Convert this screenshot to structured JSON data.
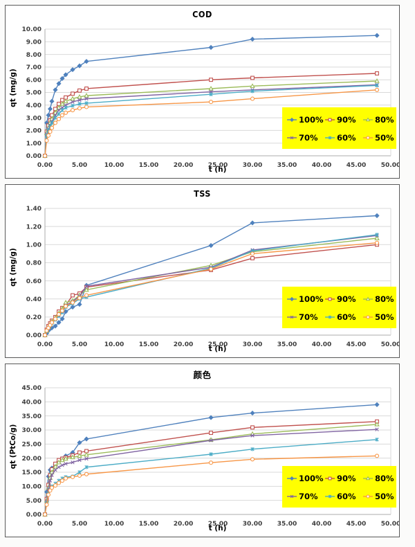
{
  "colors": {
    "legend_bg": "#ffff00",
    "grid": "#d9d9d9",
    "axis": "#ababab",
    "tick_label": "#3d3d3d",
    "panel_border": "#595959",
    "series": {
      "100%": "#4F81BD",
      "90%": "#C0504D",
      "80%": "#9BBB59",
      "70%": "#8064A2",
      "60%": "#4BACC6",
      "50%": "#F79646"
    }
  },
  "chart_data": [
    {
      "type": "line",
      "title": "COD",
      "xlabel": "t (h)",
      "ylabel": "qt (mg/g)",
      "xlim": [
        0,
        50
      ],
      "ylim": [
        0,
        10
      ],
      "grid": "horizontal",
      "legend_position": "lower-right",
      "legend_labels": [
        "100%",
        "90%",
        "80%",
        "70%",
        "60%",
        "50%"
      ],
      "x_ticks": [
        "0.00",
        "5.00",
        "10.00",
        "15.00",
        "20.00",
        "25.00",
        "30.00",
        "35.00",
        "40.00",
        "45.00",
        "50.00"
      ],
      "y_ticks": [
        "0.00",
        "1.00",
        "2.00",
        "3.00",
        "4.00",
        "5.00",
        "6.00",
        "7.00",
        "8.00",
        "9.00",
        "10.00"
      ],
      "x": [
        0,
        0.25,
        0.5,
        0.75,
        1,
        1.5,
        2,
        2.5,
        3,
        4,
        5,
        6,
        24,
        30,
        48
      ],
      "series": [
        {
          "name": "100%",
          "color": "#4F81BD",
          "marker": "diamond",
          "values": [
            0,
            2.6,
            3.2,
            3.7,
            4.3,
            5.2,
            5.7,
            6.1,
            6.4,
            6.8,
            7.1,
            7.45,
            8.55,
            9.2,
            9.5
          ]
        },
        {
          "name": "90%",
          "color": "#C0504D",
          "marker": "square",
          "values": [
            0,
            1.9,
            2.4,
            2.8,
            3.2,
            3.7,
            4.1,
            4.4,
            4.6,
            4.9,
            5.15,
            5.3,
            6.0,
            6.15,
            6.5
          ]
        },
        {
          "name": "80%",
          "color": "#9BBB59",
          "marker": "triangle",
          "values": [
            0,
            1.8,
            2.2,
            2.6,
            2.9,
            3.4,
            3.8,
            4.1,
            4.3,
            4.5,
            4.65,
            4.75,
            5.3,
            5.5,
            5.9
          ]
        },
        {
          "name": "70%",
          "color": "#8064A2",
          "marker": "x",
          "values": [
            0,
            1.7,
            2.1,
            2.4,
            2.7,
            3.2,
            3.6,
            3.8,
            4.0,
            4.25,
            4.4,
            4.5,
            5.05,
            5.2,
            5.6
          ]
        },
        {
          "name": "60%",
          "color": "#4BACC6",
          "marker": "star",
          "values": [
            0,
            1.6,
            2.0,
            2.3,
            2.6,
            3.0,
            3.3,
            3.6,
            3.8,
            3.95,
            4.1,
            4.15,
            4.85,
            5.1,
            5.55
          ]
        },
        {
          "name": "50%",
          "color": "#F79646",
          "marker": "circle",
          "values": [
            0,
            1.2,
            1.6,
            1.9,
            2.2,
            2.6,
            2.9,
            3.2,
            3.4,
            3.6,
            3.75,
            3.85,
            4.25,
            4.5,
            5.2
          ]
        }
      ]
    },
    {
      "type": "line",
      "title": "TSS",
      "xlabel": "t (h)",
      "ylabel": "qt (mg/g)",
      "xlim": [
        0,
        50
      ],
      "ylim": [
        0,
        1.4
      ],
      "grid": "horizontal",
      "legend_position": "lower-right",
      "legend_labels": [
        "100%",
        "90%",
        "80%",
        "70%",
        "60%",
        "50%"
      ],
      "x_ticks": [
        "0.00",
        "5.00",
        "10.00",
        "15.00",
        "20.00",
        "25.00",
        "30.00",
        "35.00",
        "40.00",
        "45.00",
        "50.00"
      ],
      "y_ticks": [
        "0.00",
        "0.20",
        "0.40",
        "0.60",
        "0.80",
        "1.00",
        "1.20",
        "1.40"
      ],
      "x": [
        0,
        0.25,
        0.5,
        0.75,
        1,
        1.5,
        2,
        2.5,
        3,
        4,
        5,
        6,
        24,
        30,
        48
      ],
      "series": [
        {
          "name": "100%",
          "color": "#4F81BD",
          "marker": "diamond",
          "values": [
            0,
            0.02,
            0.05,
            0.07,
            0.08,
            0.1,
            0.14,
            0.18,
            0.26,
            0.31,
            0.34,
            0.55,
            0.99,
            1.24,
            1.32
          ]
        },
        {
          "name": "90%",
          "color": "#C0504D",
          "marker": "square",
          "values": [
            0,
            0.06,
            0.1,
            0.13,
            0.16,
            0.2,
            0.26,
            0.3,
            0.33,
            0.44,
            0.46,
            0.53,
            0.72,
            0.85,
            1.0
          ]
        },
        {
          "name": "80%",
          "color": "#9BBB59",
          "marker": "triangle",
          "values": [
            0,
            0.05,
            0.09,
            0.12,
            0.15,
            0.19,
            0.24,
            0.29,
            0.36,
            0.38,
            0.44,
            0.5,
            0.77,
            0.92,
            1.07
          ]
        },
        {
          "name": "70%",
          "color": "#8064A2",
          "marker": "x",
          "values": [
            0,
            0.04,
            0.08,
            0.11,
            0.14,
            0.18,
            0.22,
            0.26,
            0.33,
            0.37,
            0.43,
            0.54,
            0.75,
            0.94,
            1.1
          ]
        },
        {
          "name": "60%",
          "color": "#4BACC6",
          "marker": "star",
          "values": [
            0,
            0.04,
            0.07,
            0.1,
            0.13,
            0.17,
            0.21,
            0.25,
            0.31,
            0.35,
            0.4,
            0.42,
            0.74,
            0.93,
            1.11
          ]
        },
        {
          "name": "50%",
          "color": "#F79646",
          "marker": "circle",
          "values": [
            0,
            0.05,
            0.08,
            0.11,
            0.14,
            0.18,
            0.23,
            0.27,
            0.32,
            0.36,
            0.41,
            0.44,
            0.73,
            0.9,
            1.02
          ]
        }
      ]
    },
    {
      "type": "line",
      "title": "颜色",
      "xlabel": "t (h)",
      "ylabel": "qt (PtCo/g)",
      "xlim": [
        0,
        50
      ],
      "ylim": [
        0,
        45
      ],
      "grid": "horizontal",
      "legend_position": "lower-right",
      "legend_labels": [
        "100%",
        "90%",
        "80%",
        "70%",
        "60%",
        "50%"
      ],
      "x_ticks": [
        "0.00",
        "5.00",
        "10.00",
        "15.00",
        "20.00",
        "25.00",
        "30.00",
        "35.00",
        "40.00",
        "45.00",
        "50.00"
      ],
      "y_ticks": [
        "0.00",
        "5.00",
        "10.00",
        "15.00",
        "20.00",
        "25.00",
        "30.00",
        "35.00",
        "40.00",
        "45.00"
      ],
      "x": [
        0,
        0.25,
        0.5,
        0.75,
        1,
        1.5,
        2,
        2.5,
        3,
        4,
        5,
        6,
        24,
        30,
        48
      ],
      "series": [
        {
          "name": "100%",
          "color": "#4F81BD",
          "marker": "diamond",
          "values": [
            0,
            8.0,
            13.5,
            15.8,
            16.5,
            17.8,
            18.8,
            19.8,
            20.8,
            22.0,
            25.5,
            26.8,
            34.4,
            36.0,
            39.0
          ]
        },
        {
          "name": "90%",
          "color": "#C0504D",
          "marker": "square",
          "values": [
            0,
            5.5,
            10.5,
            14.0,
            16.0,
            18.0,
            19.3,
            19.8,
            20.2,
            21.0,
            22.0,
            22.5,
            29.0,
            30.9,
            33.0
          ]
        },
        {
          "name": "80%",
          "color": "#9BBB59",
          "marker": "triangle",
          "values": [
            0,
            5.0,
            9.5,
            13.0,
            15.0,
            17.0,
            18.5,
            19.3,
            19.8,
            20.3,
            20.8,
            21.2,
            26.5,
            28.6,
            32.0
          ]
        },
        {
          "name": "70%",
          "color": "#8064A2",
          "marker": "x",
          "values": [
            0,
            4.5,
            9.0,
            12.0,
            14.0,
            15.8,
            16.8,
            17.5,
            18.0,
            18.5,
            19.3,
            19.8,
            26.3,
            28.0,
            30.2
          ]
        },
        {
          "name": "60%",
          "color": "#4BACC6",
          "marker": "star",
          "values": [
            0,
            4.0,
            7.5,
            9.0,
            10.0,
            11.0,
            12.0,
            12.8,
            13.3,
            13.5,
            15.0,
            16.8,
            21.4,
            23.2,
            26.6
          ]
        },
        {
          "name": "50%",
          "color": "#F79646",
          "marker": "circle",
          "values": [
            0,
            3.5,
            7.0,
            8.5,
            9.5,
            10.3,
            11.2,
            12.0,
            12.8,
            13.3,
            13.8,
            14.3,
            18.4,
            19.6,
            20.8
          ]
        }
      ]
    }
  ]
}
